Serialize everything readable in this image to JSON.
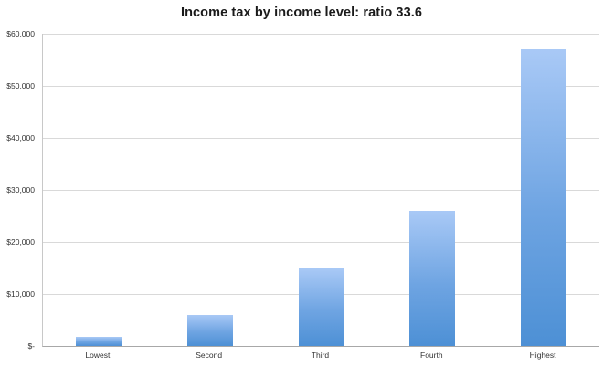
{
  "title": "Income tax by income level: ratio 33.6",
  "chart_data": {
    "type": "bar",
    "title": "Income tax by income level: ratio 33.6",
    "categories": [
      "Lowest",
      "Second",
      "Third",
      "Fourth",
      "Highest"
    ],
    "values": [
      1700,
      6000,
      15000,
      26000,
      57000
    ],
    "xlabel": "",
    "ylabel": "",
    "ylim": [
      0,
      60000
    ],
    "ytick_step": 10000,
    "ytick_labels": [
      "$-",
      "$10,000",
      "$20,000",
      "$30,000",
      "$40,000",
      "$50,000",
      "$60,000"
    ],
    "grid": true,
    "legend": false
  },
  "colors": {
    "bar_gradient_top": "#a9c9f6",
    "bar_gradient_mid": "#6ea4e2",
    "bar_gradient_bottom": "#4d90d5",
    "gridline": "#d9d9d9",
    "text": "#333333"
  }
}
